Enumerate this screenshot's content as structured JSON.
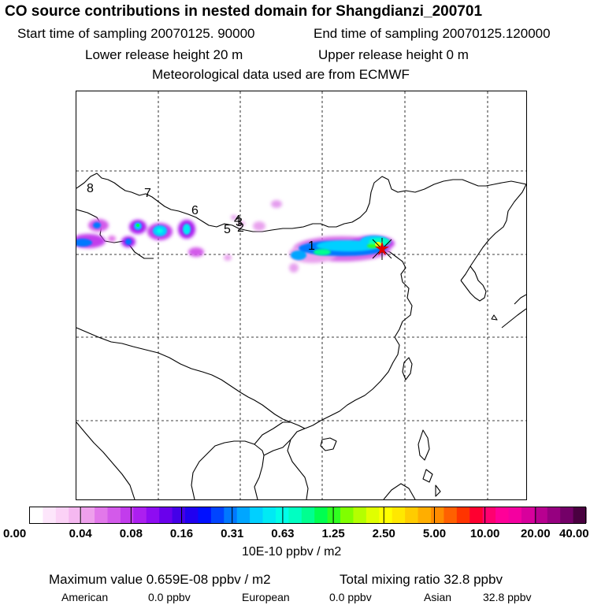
{
  "header": {
    "title": "CO  source contributions in nested domain for Shangdianzi_200701",
    "start_time": "Start time of sampling 20070125. 90000",
    "end_time": "End time of sampling 20070125.120000",
    "lower_release": "Lower release height   20 m",
    "upper_release": "Upper release height    0 m",
    "met_data": "Meteorological data used are from ECMWF"
  },
  "map": {
    "trajectory_labels": [
      "1",
      "2",
      "3",
      "4",
      "5",
      "6",
      "7",
      "8"
    ],
    "station_marker": "Shangdianzi station (red star)"
  },
  "colorbar": {
    "colors": [
      "#ffffff",
      "#fde6fb",
      "#fbd2f6",
      "#f5b8f0",
      "#eea0ec",
      "#e278ea",
      "#d35aea",
      "#c23cec",
      "#ac1ff0",
      "#8e0cf2",
      "#6a00ec",
      "#4400e8",
      "#2000f0",
      "#0010ff",
      "#0044ff",
      "#0078ff",
      "#00a6ff",
      "#00d0ff",
      "#00eaf4",
      "#00ffe8",
      "#00ffc2",
      "#00ff90",
      "#00ff50",
      "#30ff20",
      "#80ff00",
      "#b4ff00",
      "#e0ff00",
      "#ffff00",
      "#ffe800",
      "#ffcc00",
      "#ffae00",
      "#ff8c00",
      "#ff6000",
      "#ff3400",
      "#ff0030",
      "#ff0070",
      "#ff0098",
      "#f400a0",
      "#d8009c",
      "#b80090",
      "#960080",
      "#740068",
      "#4a0040"
    ],
    "tick_labels": [
      "0.00",
      "0.04",
      "0.08",
      "0.16",
      "0.31",
      "0.63",
      "1.25",
      "2.50",
      "5.00",
      "10.00",
      "20.00",
      "40.00"
    ],
    "units": "10E-10 ppbv / m2"
  },
  "footer": {
    "max_value": "Maximum value  0.659E-08 ppbv / m2",
    "total_mixing": "Total mixing ratio      32.8 ppbv",
    "american_label": "American",
    "american_value": "0.0 ppbv",
    "european_label": "European",
    "european_value": "0.0 ppbv",
    "asian_label": "Asian",
    "asian_value": "32.8 ppbv"
  }
}
